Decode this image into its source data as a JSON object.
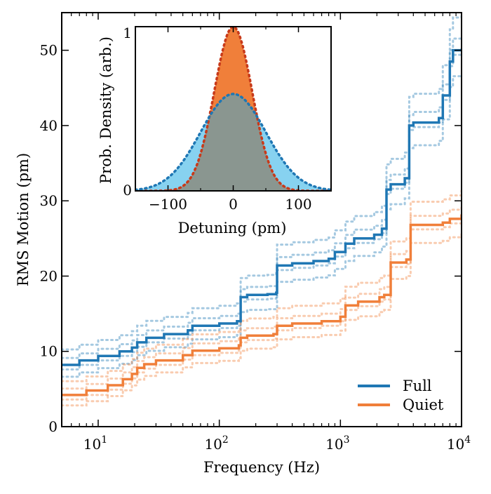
{
  "chart_data": [
    {
      "type": "line",
      "title": "",
      "xlabel": "Frequency (Hz)",
      "ylabel": "RMS Motion (pm)",
      "xscale": "log",
      "xlim": [
        5,
        10000
      ],
      "ylim": [
        0,
        55
      ],
      "x_ticks": [
        {
          "value": 10,
          "base": "10",
          "exp": "1"
        },
        {
          "value": 100,
          "base": "10",
          "exp": "2"
        },
        {
          "value": 1000,
          "base": "10",
          "exp": "3"
        },
        {
          "value": 10000,
          "base": "10",
          "exp": "4"
        }
      ],
      "y_ticks": [
        0,
        10,
        20,
        30,
        40,
        50
      ],
      "y_tick_labels": [
        "0",
        "10",
        "20",
        "30",
        "40",
        "50"
      ],
      "legend": {
        "position": "lower-right",
        "entries": [
          "Full",
          "Quiet"
        ]
      },
      "series": [
        {
          "name": "Full",
          "color": "#1f77b4",
          "style": "solid",
          "points": [
            [
              5,
              8.2
            ],
            [
              7,
              8.8
            ],
            [
              10,
              9.4
            ],
            [
              15,
              10.0
            ],
            [
              19,
              10.5
            ],
            [
              21,
              11.2
            ],
            [
              25,
              11.8
            ],
            [
              35,
              12.3
            ],
            [
              55,
              12.8
            ],
            [
              60,
              13.4
            ],
            [
              100,
              13.7
            ],
            [
              140,
              14.0
            ],
            [
              150,
              17.2
            ],
            [
              170,
              17.5
            ],
            [
              250,
              17.6
            ],
            [
              295,
              17.8
            ],
            [
              300,
              21.4
            ],
            [
              400,
              21.7
            ],
            [
              600,
              22.0
            ],
            [
              800,
              22.3
            ],
            [
              900,
              23.2
            ],
            [
              1100,
              24.3
            ],
            [
              1300,
              25.0
            ],
            [
              1900,
              25.5
            ],
            [
              2200,
              26.3
            ],
            [
              2400,
              31.5
            ],
            [
              2600,
              32.2
            ],
            [
              3400,
              33.0
            ],
            [
              3700,
              40.0
            ],
            [
              4000,
              40.4
            ],
            [
              6500,
              41.0
            ],
            [
              7000,
              44.0
            ],
            [
              8000,
              48.5
            ],
            [
              8500,
              50.0
            ],
            [
              10000,
              50.2
            ]
          ]
        },
        {
          "name": "Quiet",
          "color": "#f07f3a",
          "style": "solid",
          "points": [
            [
              5,
              4.2
            ],
            [
              8,
              4.8
            ],
            [
              12,
              5.5
            ],
            [
              16,
              6.3
            ],
            [
              19,
              7.0
            ],
            [
              21,
              7.8
            ],
            [
              24,
              8.3
            ],
            [
              30,
              8.8
            ],
            [
              50,
              9.5
            ],
            [
              60,
              10.1
            ],
            [
              100,
              10.4
            ],
            [
              145,
              10.8
            ],
            [
              150,
              11.8
            ],
            [
              170,
              12.1
            ],
            [
              280,
              12.3
            ],
            [
              300,
              13.4
            ],
            [
              400,
              13.7
            ],
            [
              700,
              14.0
            ],
            [
              1000,
              14.6
            ],
            [
              1100,
              16.1
            ],
            [
              1400,
              16.6
            ],
            [
              2100,
              17.2
            ],
            [
              2300,
              17.5
            ],
            [
              2600,
              21.8
            ],
            [
              3500,
              22.2
            ],
            [
              3800,
              26.8
            ],
            [
              7000,
              27.1
            ],
            [
              8000,
              27.6
            ],
            [
              10000,
              28.2
            ]
          ]
        }
      ]
    },
    {
      "type": "area",
      "title": "",
      "xlabel": "Detuning (pm)",
      "ylabel": "Prob. Density (arb.)",
      "xlim": [
        -150,
        150
      ],
      "ylim": [
        0,
        1
      ],
      "x_ticks": [
        -100,
        0,
        100
      ],
      "x_tick_labels": [
        "−100",
        "0",
        "100"
      ],
      "y_ticks": [
        0,
        1
      ],
      "y_tick_labels": [
        "0",
        "1"
      ],
      "series": [
        {
          "name": "Full",
          "peak": 0.59,
          "sigma_pm": 50,
          "fill": "#87d2f0",
          "line": "#1f77b4"
        },
        {
          "name": "Quiet",
          "peak": 1.0,
          "sigma_pm": 29,
          "fill": "#f07f3a",
          "line": "#c83a1a"
        }
      ]
    }
  ]
}
